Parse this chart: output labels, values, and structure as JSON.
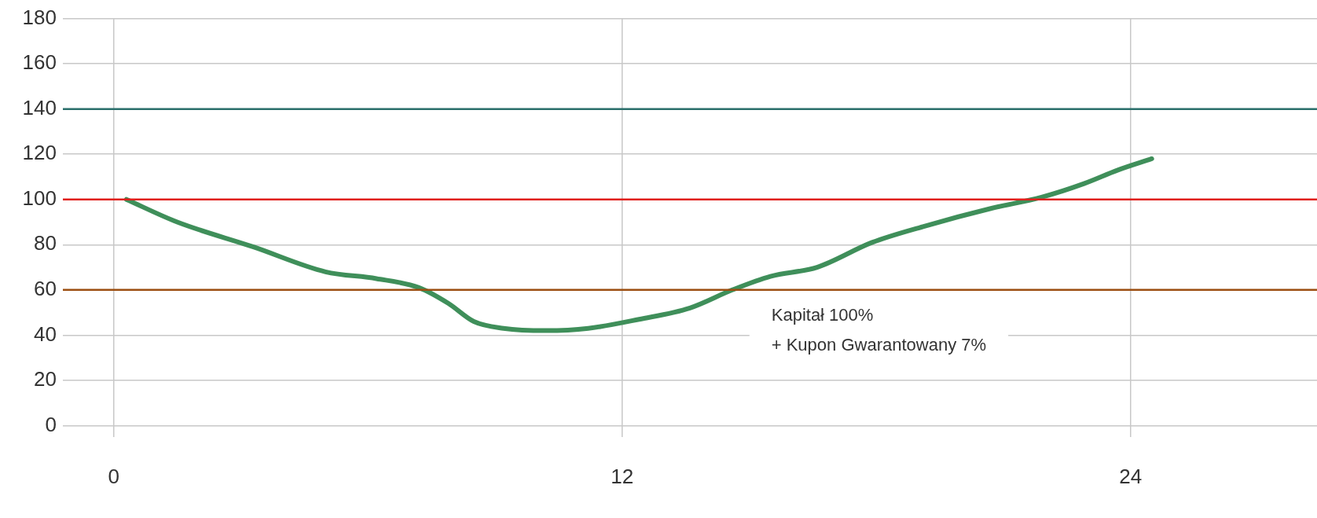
{
  "chart_data": {
    "type": "line",
    "x": [
      0.3,
      1.5,
      3.3,
      5.0,
      6.2,
      7.2,
      7.9,
      8.5,
      9.2,
      10.2,
      11.2,
      12.4,
      13.6,
      14.6,
      15.5,
      16.6,
      17.9,
      19.1,
      20.7,
      21.9,
      22.9,
      23.7,
      24.5
    ],
    "series": [
      {
        "color": "#3f8f5a",
        "values": [
          100,
          90,
          79,
          68,
          65,
          61,
          54,
          46,
          43,
          42,
          43,
          47,
          52,
          60,
          66,
          70,
          81,
          88,
          96,
          101,
          107,
          113,
          118
        ]
      }
    ],
    "xlim": [
      -1.2,
      28.4
    ],
    "xticks": [
      0,
      12,
      24
    ],
    "ylim": [
      -5,
      180
    ],
    "yticks": [
      0,
      20,
      40,
      60,
      80,
      100,
      120,
      140,
      160,
      180
    ],
    "grid": true,
    "legend": false,
    "marker": "none",
    "line_style": "solid",
    "ref_lines": [
      {
        "axis": "y",
        "value": 140,
        "color": "#2a6f6b"
      },
      {
        "axis": "y",
        "value": 100,
        "color": "#e0201c"
      },
      {
        "axis": "y",
        "value": 60,
        "color": "#9c4f12"
      }
    ],
    "annotations": [
      "Kapitał 100%\n+ Kupon Gwarantowany 7%"
    ]
  }
}
